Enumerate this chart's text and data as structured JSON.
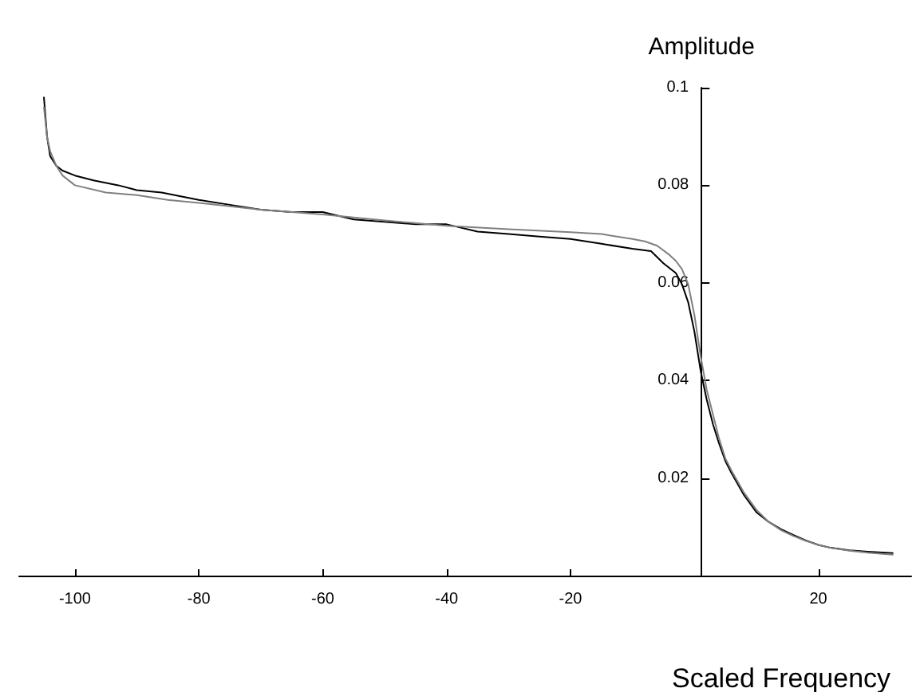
{
  "chart_data": {
    "type": "line",
    "xlabel": "Scaled Frequency",
    "ylabel": "Amplitude",
    "xlim": [
      -109,
      35
    ],
    "ylim": [
      0,
      0.1
    ],
    "xticks": [
      -100,
      -80,
      -60,
      -40,
      -20,
      20
    ],
    "yticks": [
      0.02,
      0.04,
      0.06,
      0.08,
      0.1
    ],
    "grid": false,
    "marker": "none",
    "line_style": "solid",
    "series": [
      {
        "color": "#000000",
        "x": [
          -105,
          -104.5,
          -104,
          -103,
          -102,
          -100,
          -97,
          -93,
          -90,
          -86,
          -80,
          -75,
          -70,
          -65,
          -60,
          -55,
          -50,
          -45,
          -40,
          -35,
          -30,
          -25,
          -20,
          -15,
          -10,
          -7,
          -5,
          -3,
          -2,
          -1,
          0,
          1,
          2,
          3,
          4,
          5,
          6,
          8,
          10,
          12,
          14,
          16,
          18,
          20,
          22,
          25,
          28,
          32
        ],
        "values": [
          0.098,
          0.09,
          0.086,
          0.084,
          0.083,
          0.082,
          0.081,
          0.08,
          0.079,
          0.0785,
          0.077,
          0.076,
          0.075,
          0.0745,
          0.0745,
          0.073,
          0.0725,
          0.072,
          0.072,
          0.0705,
          0.07,
          0.0695,
          0.069,
          0.068,
          0.067,
          0.0665,
          0.064,
          0.062,
          0.0597,
          0.056,
          0.05,
          0.042,
          0.036,
          0.031,
          0.027,
          0.0235,
          0.021,
          0.0165,
          0.013,
          0.011,
          0.0095,
          0.0083,
          0.0072,
          0.0063,
          0.0057,
          0.0052,
          0.0049,
          0.0046
        ]
      },
      {
        "color": "#808080",
        "x": [
          -105,
          -104.5,
          -104,
          -103,
          -102,
          -100,
          -95,
          -90,
          -85,
          -80,
          -70,
          -60,
          -50,
          -40,
          -30,
          -20,
          -15,
          -10,
          -8,
          -6,
          -4,
          -3,
          -2,
          -1,
          0,
          1,
          2,
          3,
          4,
          5,
          6,
          8,
          10,
          12,
          14,
          16,
          18,
          20,
          22,
          25,
          28,
          32
        ],
        "values": [
          0.096,
          0.09,
          0.087,
          0.084,
          0.082,
          0.08,
          0.0785,
          0.078,
          0.077,
          0.0764,
          0.075,
          0.074,
          0.0728,
          0.0717,
          0.071,
          0.0704,
          0.07,
          0.069,
          0.0685,
          0.0676,
          0.0657,
          0.0645,
          0.0628,
          0.0597,
          0.0534,
          0.045,
          0.038,
          0.033,
          0.028,
          0.024,
          0.0215,
          0.017,
          0.0135,
          0.011,
          0.0093,
          0.0081,
          0.0071,
          0.0063,
          0.0057,
          0.0051,
          0.0047,
          0.0043
        ]
      }
    ]
  }
}
